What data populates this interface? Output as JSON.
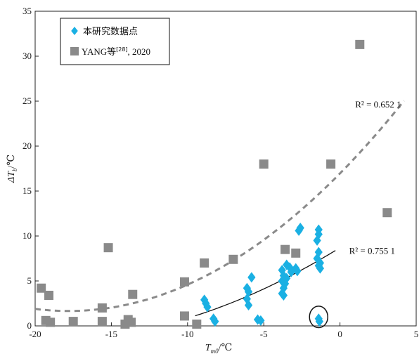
{
  "chart_data": {
    "type": "scatter",
    "xlabel": "T",
    "xlabel_sub": "m0",
    "xlabel_unit": "/℃",
    "ylabel": "ΔT",
    "ylabel_sub": "b",
    "ylabel_unit": "/℃",
    "xlim": [
      -20,
      5
    ],
    "ylim": [
      0,
      35
    ],
    "xticks": [
      -20,
      -15,
      -10,
      -5,
      0,
      5
    ],
    "yticks": [
      0,
      5,
      10,
      15,
      20,
      25,
      30,
      35
    ],
    "grid": false,
    "legend_position": "top-left",
    "series": [
      {
        "name": "本研究数据点",
        "marker": "diamond",
        "color": "#1ab0e3",
        "points": [
          [
            -8.9,
            2.9
          ],
          [
            -8.8,
            2.5
          ],
          [
            -8.7,
            2.1
          ],
          [
            -8.3,
            0.8
          ],
          [
            -8.2,
            0.5
          ],
          [
            -6.1,
            4.2
          ],
          [
            -6.0,
            3.8
          ],
          [
            -6.1,
            3.0
          ],
          [
            -6.0,
            2.3
          ],
          [
            -5.8,
            5.4
          ],
          [
            -5.4,
            0.7
          ],
          [
            -5.2,
            0.6
          ],
          [
            -3.8,
            6.2
          ],
          [
            -3.7,
            5.6
          ],
          [
            -3.8,
            5.0
          ],
          [
            -3.6,
            4.7
          ],
          [
            -3.7,
            4.2
          ],
          [
            -3.8,
            3.6
          ],
          [
            -3.7,
            3.4
          ],
          [
            -3.5,
            6.8
          ],
          [
            -3.5,
            5.3
          ],
          [
            -3.3,
            6.5
          ],
          [
            -3.2,
            6.0
          ],
          [
            -2.9,
            6.4
          ],
          [
            -2.8,
            6.1
          ],
          [
            -2.6,
            10.9
          ],
          [
            -2.7,
            10.6
          ],
          [
            -1.4,
            10.7
          ],
          [
            -1.4,
            10.2
          ],
          [
            -1.5,
            9.5
          ],
          [
            -1.4,
            8.2
          ],
          [
            -1.5,
            7.5
          ],
          [
            -1.3,
            7.0
          ],
          [
            -1.4,
            6.7
          ],
          [
            -1.3,
            6.4
          ],
          [
            -1.4,
            0.8
          ],
          [
            -1.35,
            0.5
          ]
        ],
        "fit": {
          "label": "R² = 0.755 1",
          "style": "solid",
          "color": "#111111",
          "x_range": [
            -9.5,
            -0.3
          ]
        }
      },
      {
        "name": "YANG等[28], 2020",
        "name_main": "YANG等",
        "name_sup": "[28]",
        "name_tail": ", 2020",
        "marker": "square",
        "color": "#8a8a8a",
        "points": [
          [
            -19.6,
            4.2
          ],
          [
            -19.1,
            3.4
          ],
          [
            -19.3,
            0.6
          ],
          [
            -19.0,
            0.4
          ],
          [
            -17.5,
            0.5
          ],
          [
            -15.6,
            2.0
          ],
          [
            -15.6,
            0.5
          ],
          [
            -15.2,
            8.7
          ],
          [
            -14.1,
            0.2
          ],
          [
            -13.9,
            0.7
          ],
          [
            -13.7,
            0.4
          ],
          [
            -13.6,
            3.5
          ],
          [
            -10.2,
            4.9
          ],
          [
            -10.2,
            1.1
          ],
          [
            -9.4,
            0.2
          ],
          [
            -8.9,
            7.0
          ],
          [
            -7.0,
            7.4
          ],
          [
            -5.0,
            18.0
          ],
          [
            -3.6,
            8.5
          ],
          [
            -2.9,
            8.1
          ],
          [
            -0.6,
            18.0
          ],
          [
            1.3,
            31.3
          ],
          [
            3.1,
            12.6
          ]
        ],
        "fit": {
          "label": "R² = 0.652 1",
          "style": "dashed",
          "color": "#8a8a8a",
          "x_range": [
            -20,
            4.2
          ]
        }
      }
    ],
    "annotations": [
      {
        "type": "ellipse",
        "target": "circled points",
        "cx": -1.4,
        "cy": 1.0,
        "rx": 0.6,
        "ry": 1.2
      }
    ]
  }
}
